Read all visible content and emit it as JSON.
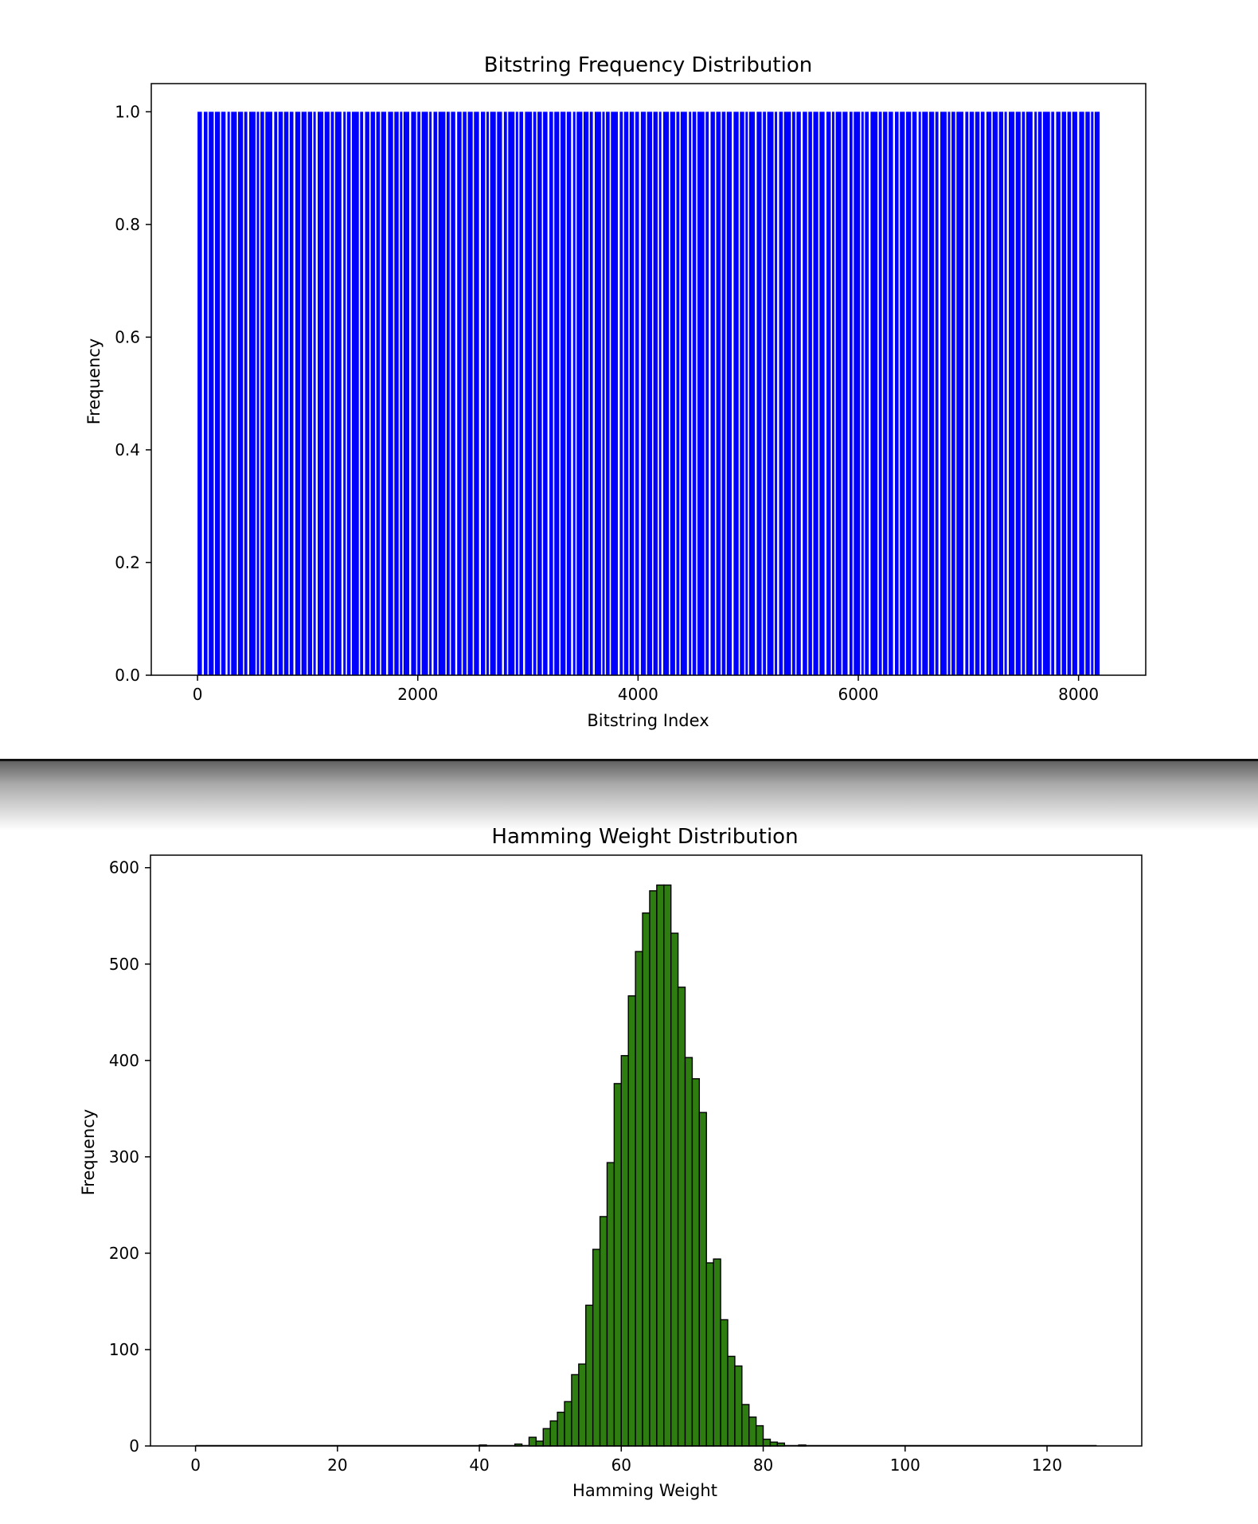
{
  "colors": {
    "bitstring_bars": "#0000ff",
    "hamming_bars": "#2e7d10",
    "hamming_edge": "#000000"
  },
  "chart_data": [
    {
      "type": "bar",
      "title": "Bitstring Frequency Distribution",
      "xlabel": "Bitstring Index",
      "ylabel": "Frequency",
      "xlim": [
        -420,
        8610
      ],
      "ylim": [
        0,
        1.05
      ],
      "xticks": [
        0,
        2000,
        4000,
        6000,
        8000
      ],
      "xtick_labels": [
        "0",
        "2000",
        "4000",
        "6000",
        "8000"
      ],
      "yticks": [
        0.0,
        0.2,
        0.4,
        0.6,
        0.8,
        1.0
      ],
      "ytick_labels": [
        "0.0",
        "0.2",
        "0.4",
        "0.6",
        "0.8",
        "1.0"
      ],
      "bar_color": "#0000ff",
      "index_range": [
        0,
        8191
      ],
      "value_each": 1.0,
      "grid": false,
      "legend": false
    },
    {
      "type": "bar",
      "title": "Hamming Weight Distribution",
      "xlabel": "Hamming Weight",
      "ylabel": "Frequency",
      "xlim": [
        -6.35,
        133.35
      ],
      "ylim": [
        0,
        613
      ],
      "xticks": [
        0,
        20,
        40,
        60,
        80,
        100,
        120
      ],
      "xtick_labels": [
        "0",
        "20",
        "40",
        "60",
        "80",
        "100",
        "120"
      ],
      "yticks": [
        0,
        100,
        200,
        300,
        400,
        500,
        600
      ],
      "ytick_labels": [
        "0",
        "100",
        "200",
        "300",
        "400",
        "500",
        "600"
      ],
      "bar_color": "#2e7d10",
      "edge_color": "#000000",
      "grid": false,
      "legend": false,
      "bins": [
        {
          "x": 40,
          "value": 1
        },
        {
          "x": 45,
          "value": 2
        },
        {
          "x": 47,
          "value": 9
        },
        {
          "x": 48,
          "value": 5
        },
        {
          "x": 49,
          "value": 18
        },
        {
          "x": 50,
          "value": 26
        },
        {
          "x": 51,
          "value": 35
        },
        {
          "x": 52,
          "value": 46
        },
        {
          "x": 53,
          "value": 74
        },
        {
          "x": 54,
          "value": 85
        },
        {
          "x": 55,
          "value": 146
        },
        {
          "x": 56,
          "value": 204
        },
        {
          "x": 57,
          "value": 238
        },
        {
          "x": 58,
          "value": 294
        },
        {
          "x": 59,
          "value": 376
        },
        {
          "x": 60,
          "value": 405
        },
        {
          "x": 61,
          "value": 467
        },
        {
          "x": 62,
          "value": 513
        },
        {
          "x": 63,
          "value": 553
        },
        {
          "x": 64,
          "value": 576
        },
        {
          "x": 65,
          "value": 582
        },
        {
          "x": 66,
          "value": 582
        },
        {
          "x": 67,
          "value": 532
        },
        {
          "x": 68,
          "value": 476
        },
        {
          "x": 69,
          "value": 403
        },
        {
          "x": 70,
          "value": 381
        },
        {
          "x": 71,
          "value": 346
        },
        {
          "x": 72,
          "value": 190
        },
        {
          "x": 73,
          "value": 194
        },
        {
          "x": 74,
          "value": 131
        },
        {
          "x": 75,
          "value": 93
        },
        {
          "x": 76,
          "value": 83
        },
        {
          "x": 77,
          "value": 43
        },
        {
          "x": 78,
          "value": 30
        },
        {
          "x": 79,
          "value": 21
        },
        {
          "x": 80,
          "value": 7
        },
        {
          "x": 81,
          "value": 4
        },
        {
          "x": 82,
          "value": 3
        },
        {
          "x": 85,
          "value": 1
        }
      ]
    }
  ]
}
